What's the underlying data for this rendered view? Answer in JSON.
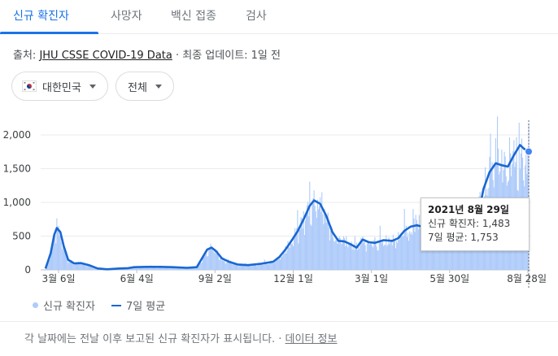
{
  "tabs": [
    {
      "label": "신규 확진자",
      "active": true
    },
    {
      "label": "사망자",
      "active": false
    },
    {
      "label": "백신 접종",
      "active": false
    },
    {
      "label": "검사",
      "active": false
    }
  ],
  "source": {
    "prefix": "출처: ",
    "link": "JHU CSSE COVID-19 Data",
    "suffix": " · 최종 업데이트: 1일 전"
  },
  "filters": {
    "country": "대한민국",
    "range": "전체"
  },
  "colors": {
    "accent": "#1a73e8",
    "bar": "#aecbfa",
    "line": "#1967d2"
  },
  "tooltip": {
    "date": "2021년 8월 29일",
    "cases": "신규 확진자: 1,483",
    "average": "7일 평균: 1,753"
  },
  "legend": {
    "bars": "신규 확진자",
    "line": "7일 평균"
  },
  "footer": {
    "text": "각 날짜에는 전날 이후 보고된 신규 확진자가 표시됩니다. · ",
    "link": "데이터 정보"
  },
  "chart_data": {
    "type": "area",
    "ylim": [
      0,
      2000
    ],
    "y_ticks": [
      "0",
      "500",
      "1,000",
      "1,500",
      "2,000"
    ],
    "x_ticks": [
      "3월 6일",
      "6월 4일",
      "9월 2일",
      "12월 1일",
      "3월 1일",
      "5월 30일",
      "8월 28일"
    ],
    "series": [
      {
        "name": "7일 평균",
        "points": [
          [
            "2020-02-20",
            20
          ],
          [
            "2020-02-26",
            250
          ],
          [
            "2020-03-01",
            520
          ],
          [
            "2020-03-04",
            620
          ],
          [
            "2020-03-08",
            560
          ],
          [
            "2020-03-12",
            350
          ],
          [
            "2020-03-17",
            150
          ],
          [
            "2020-03-24",
            95
          ],
          [
            "2020-04-01",
            100
          ],
          [
            "2020-04-10",
            70
          ],
          [
            "2020-04-20",
            20
          ],
          [
            "2020-05-01",
            8
          ],
          [
            "2020-05-15",
            20
          ],
          [
            "2020-05-25",
            25
          ],
          [
            "2020-06-01",
            40
          ],
          [
            "2020-06-15",
            45
          ],
          [
            "2020-07-01",
            45
          ],
          [
            "2020-07-15",
            40
          ],
          [
            "2020-08-01",
            30
          ],
          [
            "2020-08-12",
            40
          ],
          [
            "2020-08-18",
            170
          ],
          [
            "2020-08-24",
            300
          ],
          [
            "2020-08-29",
            330
          ],
          [
            "2020-09-03",
            280
          ],
          [
            "2020-09-10",
            170
          ],
          [
            "2020-09-18",
            120
          ],
          [
            "2020-09-28",
            80
          ],
          [
            "2020-10-10",
            70
          ],
          [
            "2020-10-25",
            90
          ],
          [
            "2020-11-08",
            120
          ],
          [
            "2020-11-15",
            190
          ],
          [
            "2020-11-22",
            300
          ],
          [
            "2020-11-29",
            430
          ],
          [
            "2020-12-06",
            570
          ],
          [
            "2020-12-13",
            750
          ],
          [
            "2020-12-20",
            950
          ],
          [
            "2020-12-25",
            1030
          ],
          [
            "2021-01-01",
            980
          ],
          [
            "2021-01-08",
            800
          ],
          [
            "2021-01-15",
            560
          ],
          [
            "2021-01-22",
            430
          ],
          [
            "2021-01-29",
            420
          ],
          [
            "2021-02-05",
            380
          ],
          [
            "2021-02-12",
            330
          ],
          [
            "2021-02-19",
            450
          ],
          [
            "2021-02-26",
            410
          ],
          [
            "2021-03-05",
            400
          ],
          [
            "2021-03-15",
            440
          ],
          [
            "2021-03-25",
            430
          ],
          [
            "2021-04-01",
            470
          ],
          [
            "2021-04-08",
            580
          ],
          [
            "2021-04-15",
            640
          ],
          [
            "2021-04-22",
            660
          ],
          [
            "2021-04-29",
            640
          ],
          [
            "2021-05-06",
            610
          ],
          [
            "2021-05-13",
            620
          ],
          [
            "2021-05-20",
            610
          ],
          [
            "2021-05-27",
            600
          ],
          [
            "2021-06-03",
            600
          ],
          [
            "2021-06-10",
            540
          ],
          [
            "2021-06-17",
            460
          ],
          [
            "2021-06-24",
            560
          ],
          [
            "2021-07-01",
            750
          ],
          [
            "2021-07-08",
            1200
          ],
          [
            "2021-07-15",
            1450
          ],
          [
            "2021-07-22",
            1580
          ],
          [
            "2021-07-29",
            1550
          ],
          [
            "2021-08-05",
            1530
          ],
          [
            "2021-08-12",
            1700
          ],
          [
            "2021-08-19",
            1850
          ],
          [
            "2021-08-24",
            1790
          ],
          [
            "2021-08-29",
            1753
          ]
        ]
      }
    ],
    "highlight": {
      "date": "2021-08-29",
      "cases": 1483,
      "average": 1753
    }
  }
}
